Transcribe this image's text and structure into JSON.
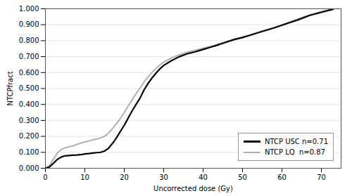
{
  "chart_data": {
    "type": "line",
    "xlabel": "Uncorrected dose (Gy)",
    "ylabel": "NTCPfract",
    "xlim": [
      0,
      75
    ],
    "ylim": [
      0,
      1
    ],
    "xticks": [
      0,
      10,
      20,
      30,
      40,
      50,
      60,
      70
    ],
    "yticks": [
      {
        "value": 0,
        "label": "0.000"
      },
      {
        "value": 0.1,
        "label": "0.100"
      },
      {
        "value": 0.2,
        "label": "0.200"
      },
      {
        "value": 0.3,
        "label": "0.300"
      },
      {
        "value": 0.4,
        "label": "0.400"
      },
      {
        "value": 0.5,
        "label": "0.500"
      },
      {
        "value": 0.6,
        "label": "0.600"
      },
      {
        "value": 0.7,
        "label": "0.700"
      },
      {
        "value": 0.8,
        "label": "0.800"
      },
      {
        "value": 0.9,
        "label": "0.900"
      },
      {
        "value": 1,
        "label": "1.000"
      }
    ],
    "grid": "y",
    "legend": "lower right",
    "x": [
      0,
      1,
      2,
      3,
      4,
      5,
      6,
      7,
      8,
      9,
      10,
      11,
      12,
      13,
      14,
      15,
      16,
      17,
      18,
      19,
      20,
      21,
      22,
      23,
      24,
      25,
      26,
      27,
      28,
      29,
      30,
      32,
      34,
      36,
      38,
      40,
      42,
      44,
      46,
      48,
      50,
      52,
      55,
      58,
      61,
      64,
      67,
      70,
      73
    ],
    "series": [
      {
        "name": "NTCP USC n=0.71",
        "color": "#000000",
        "values": [
          0.0,
          0.008,
          0.03,
          0.055,
          0.07,
          0.078,
          0.08,
          0.082,
          0.083,
          0.085,
          0.09,
          0.092,
          0.095,
          0.098,
          0.1,
          0.108,
          0.125,
          0.155,
          0.19,
          0.23,
          0.27,
          0.315,
          0.36,
          0.4,
          0.44,
          0.49,
          0.53,
          0.565,
          0.595,
          0.622,
          0.645,
          0.675,
          0.7,
          0.718,
          0.73,
          0.745,
          0.76,
          0.775,
          0.792,
          0.808,
          0.82,
          0.835,
          0.858,
          0.88,
          0.905,
          0.93,
          0.958,
          0.978,
          0.997
        ]
      },
      {
        "name": "NTCP LQ  n=0.87",
        "color": "#b0b0b0",
        "values": [
          0.0,
          0.015,
          0.055,
          0.095,
          0.118,
          0.128,
          0.135,
          0.14,
          0.15,
          0.158,
          0.165,
          0.17,
          0.178,
          0.183,
          0.19,
          0.2,
          0.22,
          0.248,
          0.278,
          0.312,
          0.35,
          0.39,
          0.43,
          0.468,
          0.502,
          0.54,
          0.572,
          0.6,
          0.625,
          0.648,
          0.665,
          0.692,
          0.712,
          0.728,
          0.74,
          0.752,
          0.765,
          0.78,
          0.795,
          0.81,
          0.822,
          0.837,
          0.86,
          0.882,
          0.908,
          0.935,
          0.962,
          0.983,
          1.0
        ]
      }
    ]
  }
}
